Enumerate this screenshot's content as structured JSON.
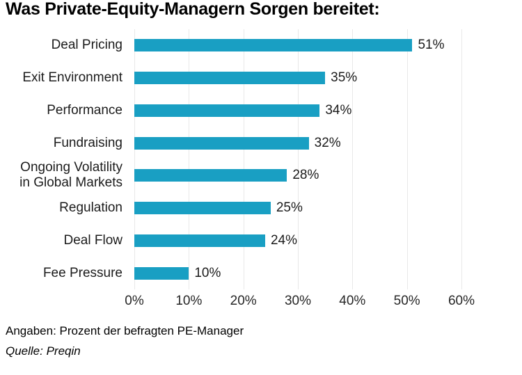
{
  "page": {
    "title": "Was Private-Equity-Managern Sorgen bereitet:",
    "footnote": "Angaben: Prozent der befragten PE-Manager",
    "source": "Quelle: Preqin"
  },
  "chart_data": {
    "type": "bar",
    "orientation": "horizontal",
    "title": "Was Private-Equity-Managern Sorgen bereitet:",
    "categories": [
      "Deal Pricing",
      "Exit Environment",
      "Performance",
      "Fundraising",
      "Ongoing Volatility\nin Global Markets",
      "Regulation",
      "Deal Flow",
      "Fee Pressure"
    ],
    "values": [
      51,
      35,
      34,
      32,
      28,
      25,
      24,
      10
    ],
    "value_labels": [
      "51%",
      "35%",
      "34%",
      "32%",
      "28%",
      "25%",
      "24%",
      "10%"
    ],
    "x_ticks": [
      "0%",
      "10%",
      "20%",
      "30%",
      "40%",
      "50%",
      "60%"
    ],
    "x_tick_values": [
      0,
      10,
      20,
      30,
      40,
      50,
      60
    ],
    "xlim": [
      0,
      60
    ],
    "grid": true,
    "legend": false,
    "bar_color": "#199FC3",
    "gridline_color": "#E8E8E8",
    "label_color": "#1b1b1b"
  }
}
